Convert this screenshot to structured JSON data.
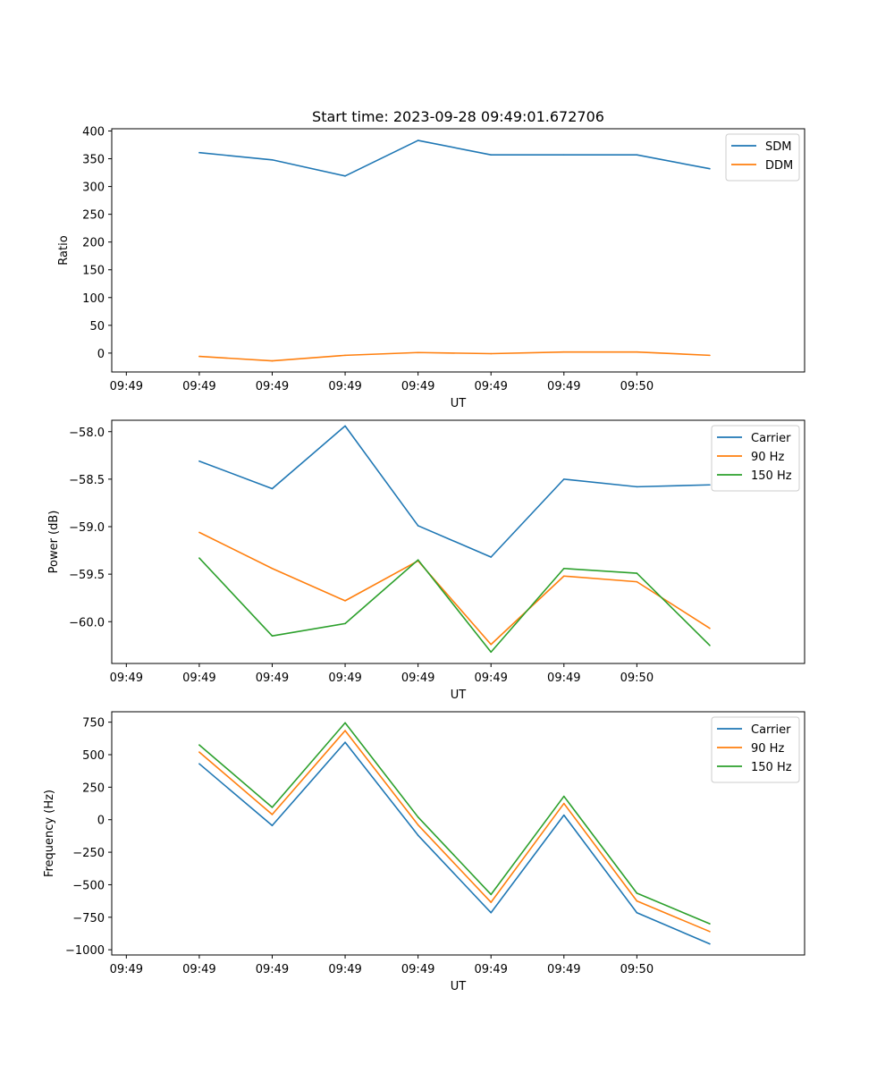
{
  "title": "Start time: 2023-09-28 09:49:01.672706",
  "colors": {
    "blue": "#1f77b4",
    "orange": "#ff7f0e",
    "green": "#2ca02c"
  },
  "chart_data": [
    {
      "type": "line",
      "xlabel": "UT",
      "ylabel": "Ratio",
      "x_tick_labels": [
        "09:49",
        "09:49",
        "09:49",
        "09:49",
        "09:49",
        "09:49",
        "09:49",
        "09:50"
      ],
      "x": [
        1,
        2,
        3,
        4,
        5,
        6,
        7,
        8
      ],
      "xlim": [
        -0.2,
        9.3
      ],
      "ylim": [
        -34,
        404
      ],
      "yticks": [
        0,
        50,
        100,
        150,
        200,
        250,
        300,
        350,
        400
      ],
      "legend": "top-right",
      "series": [
        {
          "name": "SDM",
          "color": "#1f77b4",
          "values": [
            361,
            348,
            319,
            383,
            357,
            357,
            357,
            332
          ]
        },
        {
          "name": "DDM",
          "color": "#ff7f0e",
          "values": [
            -6,
            -14,
            -4,
            1,
            -1,
            2,
            2,
            -4
          ]
        }
      ]
    },
    {
      "type": "line",
      "xlabel": "UT",
      "ylabel": "Power (dB)",
      "x_tick_labels": [
        "09:49",
        "09:49",
        "09:49",
        "09:49",
        "09:49",
        "09:49",
        "09:49",
        "09:50"
      ],
      "x": [
        1,
        2,
        3,
        4,
        5,
        6,
        7,
        8
      ],
      "xlim": [
        -0.2,
        9.3
      ],
      "ylim": [
        -60.44,
        -57.88
      ],
      "yticks": [
        -60.0,
        -59.5,
        -59.0,
        -58.5,
        -58.0
      ],
      "ytick_labels": [
        "−60.0",
        "−59.5",
        "−59.0",
        "−58.5",
        "−58.0"
      ],
      "legend": "top-right",
      "series": [
        {
          "name": "Carrier",
          "color": "#1f77b4",
          "values": [
            -58.31,
            -58.6,
            -57.94,
            -58.99,
            -59.32,
            -58.5,
            -58.58,
            -58.56
          ]
        },
        {
          "name": "90 Hz",
          "color": "#ff7f0e",
          "values": [
            -59.06,
            -59.44,
            -59.78,
            -59.36,
            -60.24,
            -59.52,
            -59.58,
            -60.07
          ]
        },
        {
          "name": "150 Hz",
          "color": "#2ca02c",
          "values": [
            -59.33,
            -60.15,
            -60.02,
            -59.35,
            -60.32,
            -59.44,
            -59.49,
            -60.25
          ]
        }
      ]
    },
    {
      "type": "line",
      "xlabel": "UT",
      "ylabel": "Frequency (Hz)",
      "x_tick_labels": [
        "09:49",
        "09:49",
        "09:49",
        "09:49",
        "09:49",
        "09:49",
        "09:49",
        "09:50"
      ],
      "x": [
        1,
        2,
        3,
        4,
        5,
        6,
        7,
        8
      ],
      "xlim": [
        -0.2,
        9.3
      ],
      "ylim": [
        -1040,
        830
      ],
      "yticks": [
        -1000,
        -750,
        -500,
        -250,
        0,
        250,
        500,
        750
      ],
      "ytick_labels": [
        "−1000",
        "−750",
        "−500",
        "−250",
        "0",
        "250",
        "500",
        "750"
      ],
      "legend": "top-right",
      "series": [
        {
          "name": "Carrier",
          "color": "#1f77b4",
          "values": [
            430,
            -45,
            595,
            -120,
            -715,
            35,
            -715,
            -955
          ]
        },
        {
          "name": "90 Hz",
          "color": "#ff7f0e",
          "values": [
            520,
            40,
            685,
            -40,
            -635,
            125,
            -625,
            -860
          ]
        },
        {
          "name": "150 Hz",
          "color": "#2ca02c",
          "values": [
            575,
            95,
            745,
            20,
            -575,
            180,
            -565,
            -800
          ]
        }
      ]
    }
  ]
}
